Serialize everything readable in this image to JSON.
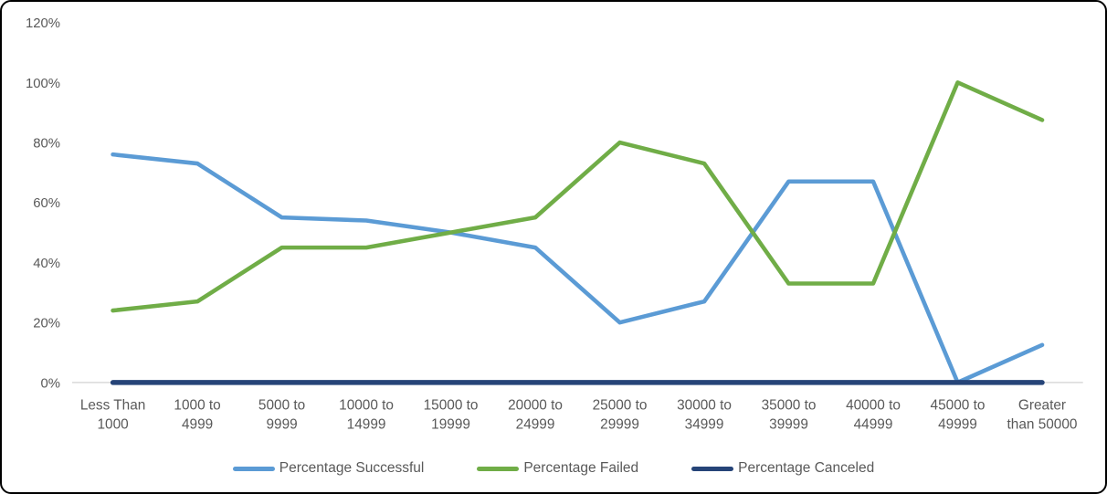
{
  "frame": {
    "background_color": "#ffffff",
    "border_color": "#000000"
  },
  "chart_data": {
    "type": "line",
    "title": "",
    "xlabel": "",
    "ylabel": "",
    "ylim": [
      0,
      120
    ],
    "grid": false,
    "legend_position": "bottom",
    "axis_line_color": "#d9d9d9",
    "tick_label_color": "#595959",
    "ytick_values": [
      0,
      20,
      40,
      60,
      80,
      100,
      120
    ],
    "ytick_labels": [
      "0%",
      "20%",
      "40%",
      "60%",
      "80%",
      "100%",
      "120%"
    ],
    "categories": [
      "Less Than 1000",
      "1000 to 4999",
      "5000 to 9999",
      "10000 to 14999",
      "15000 to 19999",
      "20000 to 24999",
      "25000 to 29999",
      "30000 to 34999",
      "35000 to 39999",
      "40000 to 44999",
      "45000 to 49999",
      "Greater than 50000"
    ],
    "category_label_lines": [
      [
        "Less Than",
        "1000"
      ],
      [
        "1000 to",
        "4999"
      ],
      [
        "5000 to",
        "9999"
      ],
      [
        "10000 to",
        "14999"
      ],
      [
        "15000 to",
        "19999"
      ],
      [
        "20000 to",
        "24999"
      ],
      [
        "25000 to",
        "29999"
      ],
      [
        "30000 to",
        "34999"
      ],
      [
        "35000 to",
        "39999"
      ],
      [
        "40000 to",
        "44999"
      ],
      [
        "45000 to",
        "49999"
      ],
      [
        "Greater",
        "than 50000"
      ]
    ],
    "series": [
      {
        "name": "Percentage Successful",
        "color": "#5B9BD5",
        "values": [
          76,
          73,
          55,
          54,
          50,
          45,
          20,
          27,
          67,
          67,
          0,
          12.5
        ]
      },
      {
        "name": "Percentage Failed",
        "color": "#70AD47",
        "values": [
          24,
          27,
          45,
          45,
          50,
          55,
          80,
          73,
          33,
          33,
          100,
          87.5
        ]
      },
      {
        "name": "Percentage Canceled",
        "color": "#264478",
        "values": [
          0,
          0,
          0,
          0,
          0,
          0,
          0,
          0,
          0,
          0,
          0,
          0
        ]
      }
    ]
  }
}
